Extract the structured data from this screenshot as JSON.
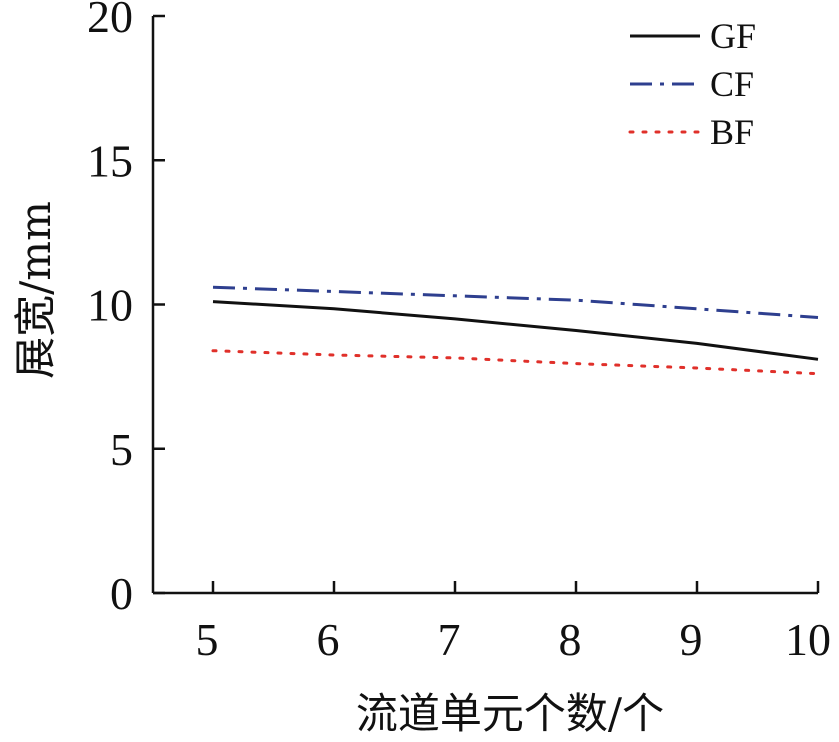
{
  "chart_data": {
    "type": "line",
    "xlabel": "流道单元个数/个",
    "ylabel": "展宽/mm",
    "xlim": [
      5,
      10
    ],
    "ylim": [
      0,
      20
    ],
    "x_ticks": [
      "5",
      "6",
      "7",
      "8",
      "9",
      "10"
    ],
    "y_ticks": [
      "0",
      "5",
      "10",
      "15",
      "20"
    ],
    "grid": false,
    "legend_position": "top-right",
    "x": [
      5,
      6,
      7,
      8,
      9,
      10
    ],
    "series": [
      {
        "name": "GF",
        "values": [
          10.1,
          9.85,
          9.5,
          9.1,
          8.65,
          8.1
        ],
        "color": "#111111",
        "dash": "solid"
      },
      {
        "name": "CF",
        "values": [
          10.6,
          10.45,
          10.3,
          10.15,
          9.85,
          9.55
        ],
        "color": "#2e3f8f",
        "dash": "dashdot"
      },
      {
        "name": "BF",
        "values": [
          8.4,
          8.25,
          8.15,
          7.95,
          7.8,
          7.6
        ],
        "color": "#e0302a",
        "dash": "dotted"
      }
    ]
  }
}
